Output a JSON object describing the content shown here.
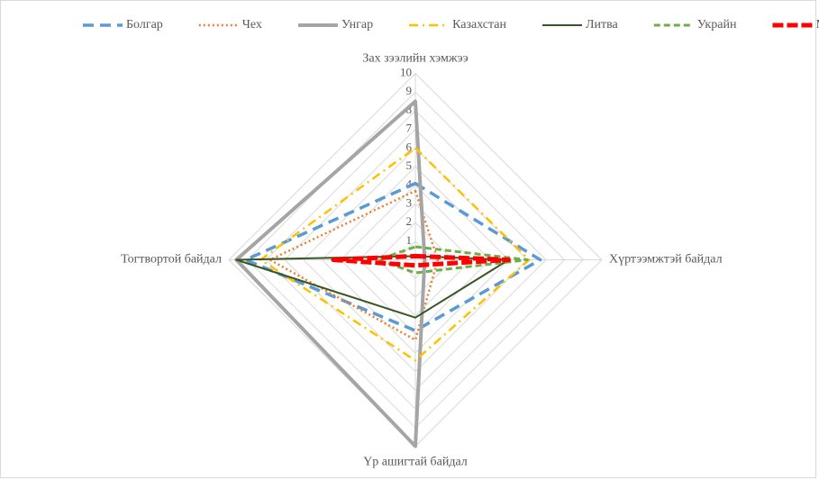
{
  "chart_data": {
    "type": "radar",
    "categories": [
      "Зах зээлийн хэмжээ",
      "Хүртээмжтэй байдал",
      "Үр ашигтай байдал",
      "Тогтвортой байдал"
    ],
    "rlim": [
      0,
      10
    ],
    "rticks": [
      1,
      2,
      3,
      4,
      5,
      6,
      7,
      8,
      9,
      10
    ],
    "grid": true,
    "legend": "top",
    "series": [
      {
        "name": "Болгар",
        "color": "#5b9bd5",
        "values": [
          4.1,
          6.7,
          3.8,
          9.1
        ]
      },
      {
        "name": "Чех",
        "color": "#ed7d31",
        "values": [
          3.7,
          1.2,
          4.3,
          7.8
        ]
      },
      {
        "name": "Унгар",
        "color": "#a5a5a5",
        "values": [
          8.5,
          0.5,
          10,
          9.6
        ]
      },
      {
        "name": "Казахстан",
        "color": "#ffc000",
        "values": [
          6.0,
          6.1,
          5.4,
          8.3
        ]
      },
      {
        "name": "Литва",
        "color": "#375623",
        "values": [
          0.2,
          5.0,
          3.1,
          9.6
        ]
      },
      {
        "name": "Украйн",
        "color": "#70ad47",
        "values": [
          0.7,
          6.0,
          0.7,
          2.0
        ]
      },
      {
        "name": "Монгол",
        "color": "#ff0000",
        "values": [
          0.2,
          5.0,
          0.3,
          4.4
        ]
      }
    ]
  }
}
